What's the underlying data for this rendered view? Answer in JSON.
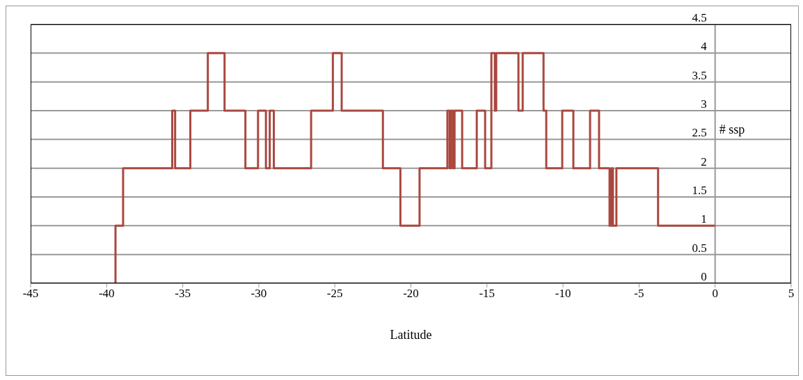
{
  "chart_data": {
    "type": "step",
    "xlabel": "Latitude",
    "ylabel": "# ssp",
    "x": [
      -39.42,
      -39.42,
      -38.92,
      -35.69,
      -35.5,
      -34.5,
      -33.35,
      -32.25,
      -30.88,
      -30.05,
      -29.53,
      -29.28,
      -29.01,
      -26.56,
      -25.13,
      -24.55,
      -21.84,
      -20.69,
      -19.43,
      -17.6,
      -17.45,
      -17.36,
      -17.22,
      -17.13,
      -16.63,
      -15.67,
      -15.12,
      -14.71,
      -14.48,
      -14.39,
      -12.93,
      -12.65,
      -11.28,
      -11.1,
      -10.05,
      -9.32,
      -8.22,
      -7.63,
      -6.94,
      -6.81,
      -6.72,
      -6.49,
      -3.75,
      0
    ],
    "series": [
      {
        "color": "#a9483f",
        "values": [
          0,
          1,
          2,
          3,
          2,
          3,
          4,
          3,
          2,
          3,
          2,
          3,
          2,
          3,
          4,
          3,
          2,
          1,
          2,
          3,
          2,
          3,
          2,
          3,
          2,
          3,
          2,
          4,
          3,
          4,
          3,
          4,
          3,
          2,
          3,
          2,
          3,
          2,
          1,
          2,
          1,
          2,
          1,
          1
        ]
      }
    ],
    "xlim": [
      -45,
      5
    ],
    "xticks": [
      -45,
      -40,
      -35,
      -30,
      -25,
      -20,
      -15,
      -10,
      -5,
      0,
      5
    ],
    "ylim": [
      0,
      4.5
    ],
    "yticks": [
      0,
      0.5,
      1,
      1.5,
      2,
      2.5,
      3,
      3.5,
      4,
      4.5
    ],
    "grid": "y",
    "legend": false,
    "marker": "none",
    "line_style": "solid"
  }
}
